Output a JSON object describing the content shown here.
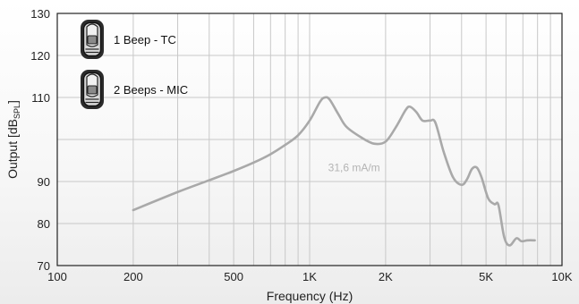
{
  "chart_data": {
    "type": "line",
    "title": "",
    "xlabel": "Frequency (Hz)",
    "ylabel": "Output [dB",
    "ylabel_sub": "SPL",
    "ylabel_close": "]",
    "x_scale": "log",
    "xlim": [
      100,
      10000
    ],
    "ylim": [
      70,
      130
    ],
    "grid": true,
    "x_ticks": [
      {
        "value": 100,
        "label": "100"
      },
      {
        "value": 200,
        "label": "200"
      },
      {
        "value": 500,
        "label": "500"
      },
      {
        "value": 1000,
        "label": "1K"
      },
      {
        "value": 2000,
        "label": "2K"
      },
      {
        "value": 5000,
        "label": "5K"
      },
      {
        "value": 10000,
        "label": "10K"
      }
    ],
    "y_ticks": [
      {
        "value": 70,
        "label": "70"
      },
      {
        "value": 80,
        "label": "80"
      },
      {
        "value": 90,
        "label": "90"
      },
      {
        "value": 110,
        "label": "110"
      },
      {
        "value": 120,
        "label": "120"
      },
      {
        "value": 130,
        "label": "130"
      }
    ],
    "series": [
      {
        "color": "#a9a9a9",
        "x": [
          200,
          300,
          400,
          500,
          600,
          700,
          800,
          900,
          1000,
          1100,
          1150,
          1200,
          1300,
          1400,
          1600,
          1800,
          2000,
          2200,
          2400,
          2500,
          2650,
          2800,
          3000,
          3150,
          3400,
          3700,
          4000,
          4200,
          4400,
          4600,
          4800,
          5100,
          5400,
          5600,
          5900,
          6200,
          6600,
          6900,
          7300,
          7800
        ],
        "y": [
          83.2,
          87.5,
          90.3,
          92.5,
          94.5,
          96.5,
          98.7,
          101.0,
          104.5,
          109.0,
          110.0,
          109.5,
          106.0,
          103.0,
          100.5,
          99.0,
          99.5,
          103.0,
          107.0,
          107.8,
          106.5,
          104.5,
          104.5,
          104.0,
          97.0,
          91.0,
          89.2,
          90.5,
          93.0,
          93.3,
          91.0,
          86.0,
          84.6,
          84.4,
          76.8,
          74.8,
          76.5,
          75.8,
          76.0,
          76.0
        ]
      }
    ],
    "annotations": [
      {
        "text": "31,6 mA/m",
        "x": 1500,
        "y": 92.5,
        "color": "#b3b3b3"
      }
    ],
    "legend": {
      "placement": "top-left",
      "entries": [
        {
          "label": "1 Beep - TC",
          "icon": "hearing-aid-icon"
        },
        {
          "label": "2 Beeps - MIC",
          "icon": "hearing-aid-icon"
        }
      ]
    }
  }
}
